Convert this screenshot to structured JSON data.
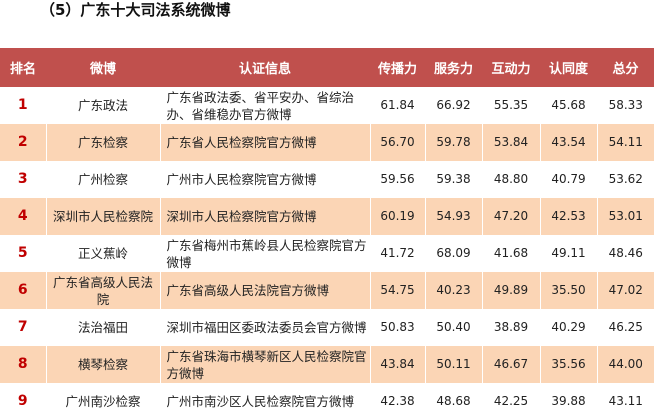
{
  "title": "（5）广东十大司法系统微博",
  "table": {
    "headers": [
      "排名",
      "微博",
      "认证信息",
      "传播力",
      "服务力",
      "互动力",
      "认同度",
      "总分"
    ],
    "rows": [
      {
        "rank": "1",
        "weibo": "广东政法",
        "info": "广东省政法委、省平安办、省综治办、省维稳办官方微博",
        "c1": "61.84",
        "c2": "66.92",
        "c3": "55.35",
        "c4": "45.68",
        "total": "58.33"
      },
      {
        "rank": "2",
        "weibo": "广东检察",
        "info": "广东省人民检察院官方微博",
        "c1": "56.70",
        "c2": "59.78",
        "c3": "53.84",
        "c4": "43.54",
        "total": "54.11"
      },
      {
        "rank": "3",
        "weibo": "广州检察",
        "info": "广州市人民检察院官方微博",
        "c1": "59.56",
        "c2": "59.38",
        "c3": "48.80",
        "c4": "40.79",
        "total": "53.62"
      },
      {
        "rank": "4",
        "weibo": "深圳市人民检察院",
        "info": "深圳市人民检察院官方微博",
        "c1": "60.19",
        "c2": "54.93",
        "c3": "47.20",
        "c4": "42.53",
        "total": "53.01"
      },
      {
        "rank": "5",
        "weibo": "正义蕉岭",
        "info": "广东省梅州市蕉岭县人民检察院官方微博",
        "c1": "41.72",
        "c2": "68.09",
        "c3": "41.68",
        "c4": "49.11",
        "total": "48.46"
      },
      {
        "rank": "6",
        "weibo": "广东省高级人民法院",
        "info": "广东省高级人民法院官方微博",
        "c1": "54.75",
        "c2": "40.23",
        "c3": "49.89",
        "c4": "35.50",
        "total": "47.02"
      },
      {
        "rank": "7",
        "weibo": "法治福田",
        "info": "深圳市福田区委政法委员会官方微博",
        "c1": "50.83",
        "c2": "50.40",
        "c3": "38.89",
        "c4": "40.29",
        "total": "46.25"
      },
      {
        "rank": "8",
        "weibo": "横琴检察",
        "info": "广东省珠海市横琴新区人民检察院官方微博",
        "c1": "43.84",
        "c2": "50.11",
        "c3": "46.67",
        "c4": "35.56",
        "total": "44.00"
      },
      {
        "rank": "9",
        "weibo": "广州南沙检察",
        "info": "广州市南沙区人民检察院官方微博",
        "c1": "42.38",
        "c2": "48.68",
        "c3": "42.25",
        "c4": "39.88",
        "total": "43.11"
      }
    ]
  }
}
